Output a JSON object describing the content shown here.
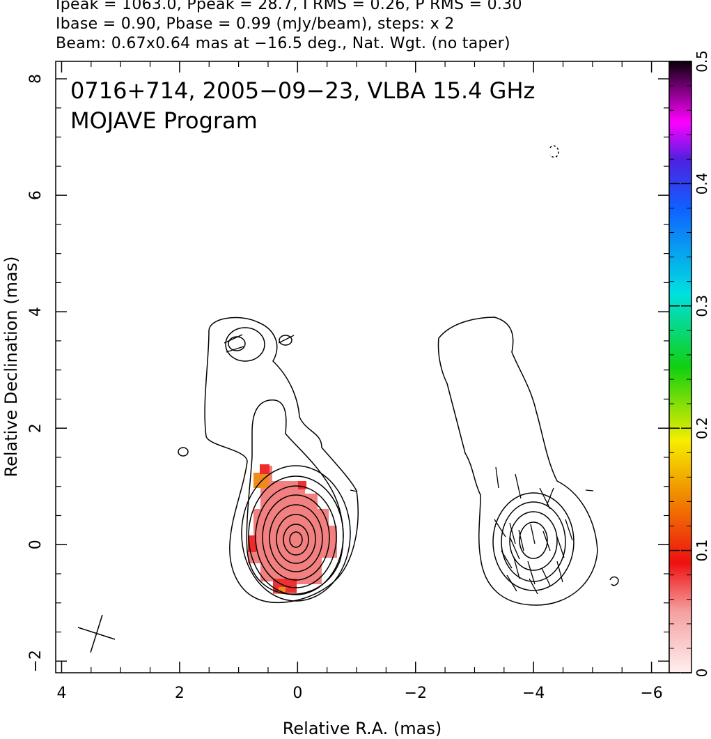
{
  "header": {
    "line1": "Ipeak = 1063.0, Ppeak = 28.7, I RMS = 0.26, P RMS = 0.30",
    "line2": "Ibase = 0.90, Pbase = 0.99 (mJy/beam), steps: x 2",
    "line3": "Beam: 0.67x0.64 mas at −16.5 deg., Nat. Wgt. (no taper)"
  },
  "chart_data": {
    "type": "heatmap",
    "title": "0716+714, 2005−09−23, VLBA 15.4 GHz",
    "subtitle": "MOJAVE Program",
    "xlabel": "Relative R.A. (mas)",
    "ylabel": "Relative Declination (mas)",
    "xlim": [
      4.1,
      -6.3
    ],
    "ylim": [
      -2.2,
      8.3
    ],
    "x_ticks": [
      "4",
      "2",
      "0",
      "−2",
      "−4",
      "−6"
    ],
    "y_ticks": [
      "−2",
      "0",
      "2",
      "4",
      "6",
      "8"
    ],
    "x_tick_values": [
      4,
      2,
      0,
      -2,
      -4,
      -6
    ],
    "y_tick_values": [
      -2,
      0,
      2,
      4,
      6,
      8
    ],
    "colorbar": {
      "range": [
        0,
        0.5
      ],
      "ticks": [
        "0",
        "0.1",
        "0.2",
        "0.3",
        "0.4",
        "0.5"
      ],
      "tick_values": [
        0,
        0.1,
        0.2,
        0.3,
        0.4,
        0.5
      ]
    },
    "panels": [
      {
        "name": "total intensity",
        "center": [
          0,
          0
        ],
        "contour_levels_mJy_per_beam": [
          0.9,
          1.8,
          3.6,
          7.2,
          14.4,
          28.8,
          57.6,
          115.2,
          230.4,
          460.8
        ],
        "peak_mJy_per_beam": 1063.0
      },
      {
        "name": "linear polarization",
        "center": [
          -4,
          0
        ],
        "peak_mJy_per_beam": 28.7
      }
    ],
    "beam": {
      "major_mas": 0.67,
      "minor_mas": 0.64,
      "pa_deg": -16.5
    },
    "grid": false,
    "colors": {
      "polarization_fill": "#f27b7b",
      "polarization_edge": "#ee2222",
      "polarization_high": "#f08a1c",
      "contour": "#000000"
    }
  }
}
